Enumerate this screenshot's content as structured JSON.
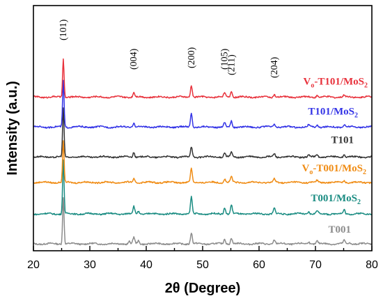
{
  "chart_data": {
    "type": "line",
    "xlabel": "2θ (Degree)",
    "ylabel": "Intensity (a.u.)",
    "xlim": [
      20,
      80
    ],
    "x_ticks": [
      "20",
      "30",
      "40",
      "50",
      "60",
      "70",
      "80"
    ],
    "y_tick_labels": false,
    "grid": false,
    "peak_labels": [
      {
        "text": "(101)",
        "x": 25.3
      },
      {
        "text": "(004)",
        "x": 37.8
      },
      {
        "text": "(200)",
        "x": 48.0
      },
      {
        "text": "(105)",
        "x": 53.9
      },
      {
        "text": "(211)",
        "x": 55.1
      },
      {
        "text": "(204)",
        "x": 62.7
      }
    ],
    "series": [
      {
        "name": "T001",
        "label_main": "T001",
        "label_sub": "",
        "label_prefix": "",
        "label_prefix_sub": "",
        "color": "#8c8c8c",
        "baseline": 0.0,
        "peaks": [
          [
            25.3,
            1.0
          ],
          [
            37.0,
            0.05
          ],
          [
            37.8,
            0.14
          ],
          [
            38.6,
            0.06
          ],
          [
            48.0,
            0.24
          ],
          [
            53.9,
            0.11
          ],
          [
            55.1,
            0.13
          ],
          [
            62.7,
            0.09
          ],
          [
            68.8,
            0.05
          ],
          [
            70.3,
            0.06
          ],
          [
            75.1,
            0.07
          ],
          [
            76.0,
            0.03
          ]
        ]
      },
      {
        "name": "T001/MoS2",
        "label_main": "T001/MoS",
        "label_sub": "2",
        "label_prefix": "",
        "label_prefix_sub": "",
        "color": "#1a8c82",
        "baseline": 1.0,
        "peaks": [
          [
            25.3,
            1.15
          ],
          [
            37.8,
            0.16
          ],
          [
            38.6,
            0.06
          ],
          [
            48.0,
            0.36
          ],
          [
            53.9,
            0.14
          ],
          [
            55.1,
            0.19
          ],
          [
            62.7,
            0.12
          ],
          [
            68.8,
            0.05
          ],
          [
            70.3,
            0.07
          ],
          [
            75.1,
            0.09
          ]
        ]
      },
      {
        "name": "Vo-T001/MoS2",
        "label_main": "-T001/MoS",
        "label_sub": "2",
        "label_prefix": "V",
        "label_prefix_sub": "o",
        "color": "#f08c14",
        "baseline": 2.05,
        "peaks": [
          [
            25.3,
            0.9
          ],
          [
            37.8,
            0.08
          ],
          [
            48.0,
            0.3
          ],
          [
            53.9,
            0.08
          ],
          [
            55.1,
            0.12
          ],
          [
            62.7,
            0.07
          ],
          [
            70.3,
            0.04
          ],
          [
            75.1,
            0.05
          ]
        ]
      },
      {
        "name": "T101",
        "label_main": "T101",
        "label_sub": "",
        "label_prefix": "",
        "label_prefix_sub": "",
        "color": "#333333",
        "baseline": 2.9,
        "peaks": [
          [
            25.3,
            1.05
          ],
          [
            37.8,
            0.11
          ],
          [
            48.0,
            0.22
          ],
          [
            53.9,
            0.09
          ],
          [
            55.1,
            0.1
          ],
          [
            62.7,
            0.07
          ],
          [
            68.8,
            0.04
          ],
          [
            70.3,
            0.05
          ],
          [
            75.1,
            0.06
          ]
        ]
      },
      {
        "name": "T101/MoS2",
        "label_main": "T101/MoS",
        "label_sub": "2",
        "label_prefix": "",
        "label_prefix_sub": "",
        "color": "#3333e6",
        "baseline": 3.9,
        "peaks": [
          [
            25.3,
            1.0
          ],
          [
            37.8,
            0.1
          ],
          [
            48.0,
            0.3
          ],
          [
            53.9,
            0.09
          ],
          [
            55.1,
            0.13
          ],
          [
            62.7,
            0.07
          ],
          [
            68.8,
            0.04
          ],
          [
            70.3,
            0.05
          ],
          [
            75.1,
            0.05
          ]
        ]
      },
      {
        "name": "Vo-T101/MoS2",
        "label_main": "-T101/MoS",
        "label_sub": "2",
        "label_prefix": "V",
        "label_prefix_sub": "o",
        "color": "#e8323c",
        "baseline": 4.9,
        "peaks": [
          [
            25.3,
            0.82
          ],
          [
            37.8,
            0.1
          ],
          [
            48.0,
            0.26
          ],
          [
            53.9,
            0.1
          ],
          [
            55.1,
            0.14
          ],
          [
            62.7,
            0.06
          ],
          [
            70.3,
            0.04
          ],
          [
            75.1,
            0.04
          ]
        ]
      }
    ]
  }
}
